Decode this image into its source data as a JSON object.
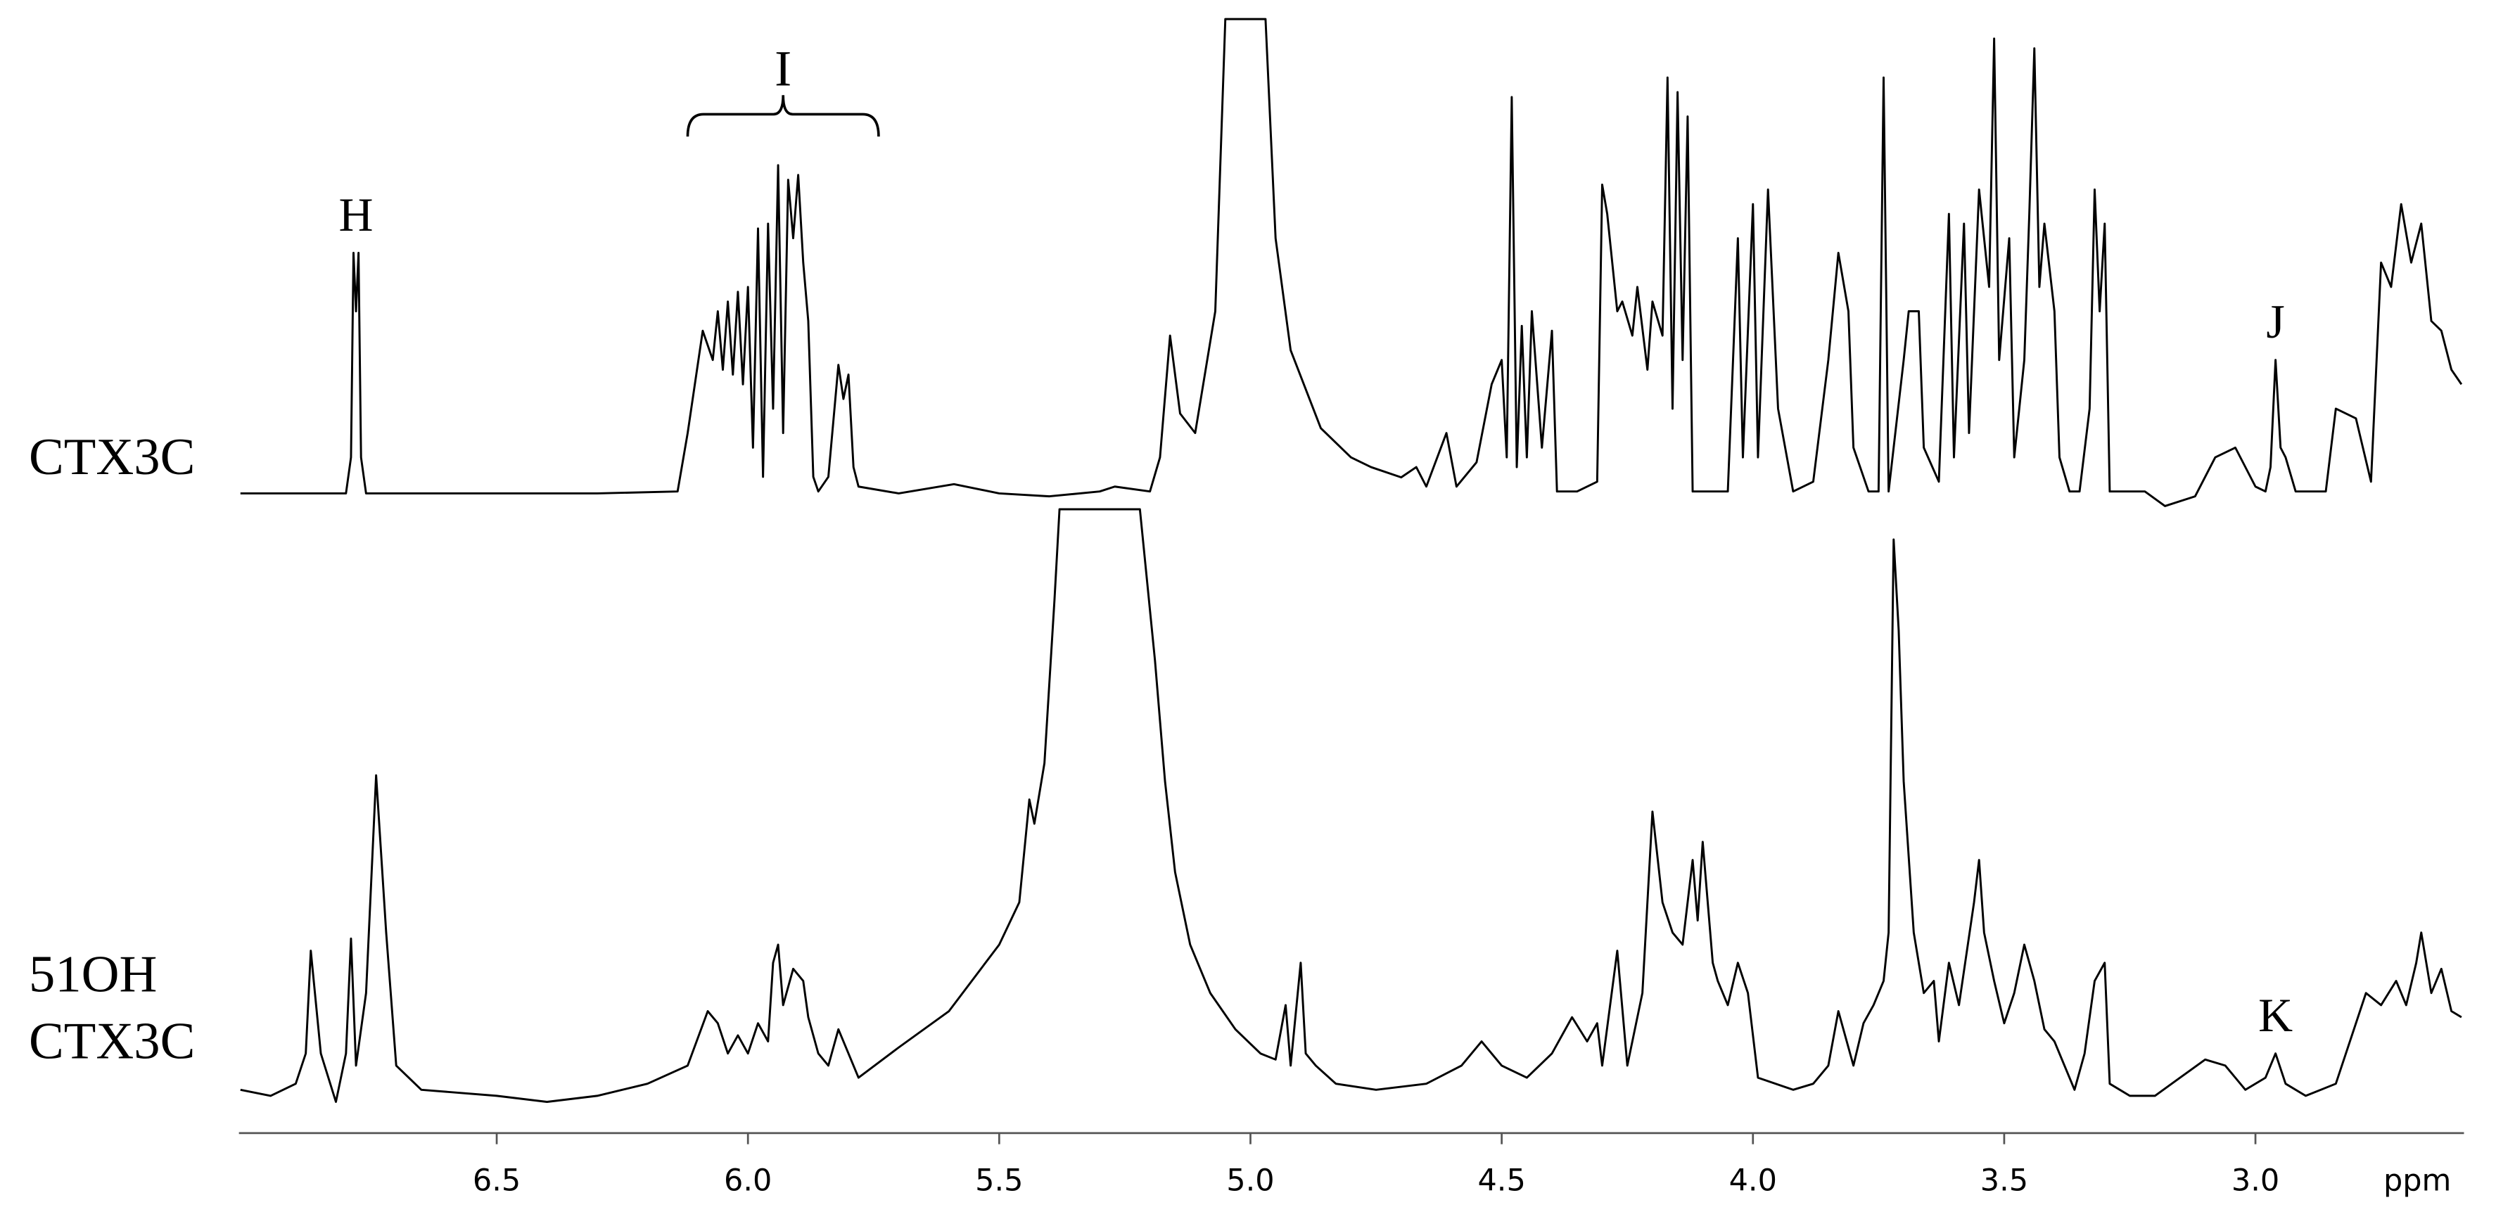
{
  "chart_data": [
    {
      "type": "line",
      "xlim": [
        7.013,
        2.585
      ],
      "ylim": [
        0,
        100
      ],
      "series": [
        {
          "label": [
            "CTX3C"
          ],
          "color": "#000000",
          "x": [
            7.01,
            6.9,
            6.8,
            6.79,
            6.785,
            6.78,
            6.775,
            6.77,
            6.76,
            6.5,
            6.3,
            6.14,
            6.12,
            6.09,
            6.07,
            6.06,
            6.05,
            6.04,
            6.03,
            6.02,
            6.01,
            6.0,
            5.99,
            5.98,
            5.97,
            5.96,
            5.95,
            5.94,
            5.93,
            5.92,
            5.91,
            5.9,
            5.89,
            5.88,
            5.87,
            5.86,
            5.84,
            5.82,
            5.81,
            5.8,
            5.79,
            5.78,
            5.7,
            5.59,
            5.5,
            5.4,
            5.3,
            5.27,
            5.2,
            5.18,
            5.16,
            5.14,
            5.11,
            5.07,
            5.05,
            4.97,
            4.95,
            4.92,
            4.86,
            4.8,
            4.76,
            4.7,
            4.67,
            4.65,
            4.61,
            4.59,
            4.55,
            4.52,
            4.5,
            4.49,
            4.48,
            4.47,
            4.46,
            4.45,
            4.44,
            4.42,
            4.4,
            4.39,
            4.35,
            4.31,
            4.3,
            4.29,
            4.27,
            4.26,
            4.24,
            4.23,
            4.21,
            4.2,
            4.18,
            4.17,
            4.16,
            4.15,
            4.14,
            4.13,
            4.12,
            4.05,
            4.03,
            4.02,
            4.0,
            3.99,
            3.97,
            3.95,
            3.92,
            3.88,
            3.85,
            3.83,
            3.81,
            3.8,
            3.77,
            3.75,
            3.74,
            3.73,
            3.7,
            3.69,
            3.67,
            3.66,
            3.63,
            3.61,
            3.6,
            3.58,
            3.57,
            3.55,
            3.53,
            3.52,
            3.51,
            3.49,
            3.48,
            3.46,
            3.45,
            3.44,
            3.43,
            3.42,
            3.4,
            3.39,
            3.37,
            3.35,
            3.33,
            3.32,
            3.31,
            3.3,
            3.29,
            3.22,
            3.18,
            3.12,
            3.08,
            3.04,
            3.0,
            2.98,
            2.97,
            2.96,
            2.95,
            2.94,
            2.92,
            2.86,
            2.84,
            2.8,
            2.77,
            2.75,
            2.73,
            2.71,
            2.69,
            2.67,
            2.65,
            2.63,
            2.61,
            2.59
          ],
          "values": [
            2.6,
            2.6,
            2.6,
            10,
            52,
            40,
            52,
            10,
            2.6,
            2.6,
            2.6,
            3,
            15,
            36,
            30,
            40,
            28,
            42,
            27,
            44,
            25,
            45,
            12,
            57,
            6,
            58,
            20,
            70,
            15,
            67,
            55,
            68,
            50,
            38,
            6,
            3,
            6,
            29,
            22,
            27,
            8,
            4,
            2.6,
            4.5,
            2.6,
            2,
            3,
            4,
            3,
            10,
            35,
            19,
            15,
            40,
            100,
            100,
            55,
            32,
            16,
            10,
            8,
            5.9,
            8,
            4,
            15,
            4,
            9,
            25,
            30,
            10,
            84,
            8,
            37,
            10,
            40,
            12,
            36,
            3,
            3,
            5,
            66,
            60,
            40,
            42,
            35,
            45,
            28,
            42,
            35,
            88,
            20,
            85,
            30,
            80,
            3,
            3,
            55,
            10,
            62,
            10,
            65,
            20,
            3,
            5,
            30,
            52,
            40,
            12,
            3,
            3,
            88,
            3,
            30,
            40,
            40,
            12,
            5,
            60,
            10,
            58,
            15,
            65,
            45,
            96,
            30,
            55,
            10,
            30,
            60,
            94,
            45,
            58,
            40,
            10,
            3,
            3,
            20,
            65,
            40,
            58,
            3,
            3,
            0,
            2,
            10,
            12,
            4,
            3,
            8,
            30,
            12,
            10,
            3,
            3,
            20,
            18,
            5,
            50,
            45,
            62,
            50,
            58,
            38,
            36,
            28,
            25
          ]
        }
      ],
      "annotations": [
        {
          "text": "H",
          "x": 6.78
        },
        {
          "text": "I",
          "x": 5.93,
          "bracket": [
            6.12,
            5.74
          ]
        },
        {
          "text": "J",
          "x": 2.96
        }
      ]
    },
    {
      "type": "line",
      "xlim": [
        7.013,
        2.585
      ],
      "ylim": [
        0,
        100
      ],
      "xticks": [
        6.5,
        {
          "value": 6,
          "label": "6.0"
        },
        5.5,
        {
          "value": 5,
          "label": "5.0"
        },
        4.5,
        {
          "value": 4,
          "label": "4.0"
        },
        3.5,
        {
          "value": 3,
          "label": "3.0"
        }
      ],
      "xlabel": "ppm",
      "series": [
        {
          "label": [
            "51OH",
            "CTX3C"
          ],
          "color": "#000000",
          "x": [
            7.01,
            6.95,
            6.9,
            6.88,
            6.87,
            6.85,
            6.82,
            6.8,
            6.79,
            6.78,
            6.76,
            6.74,
            6.72,
            6.7,
            6.65,
            6.5,
            6.4,
            6.3,
            6.2,
            6.12,
            6.08,
            6.06,
            6.04,
            6.02,
            6.0,
            5.98,
            5.96,
            5.95,
            5.94,
            5.93,
            5.91,
            5.89,
            5.88,
            5.86,
            5.84,
            5.82,
            5.8,
            5.78,
            5.7,
            5.6,
            5.5,
            5.46,
            5.44,
            5.43,
            5.41,
            5.39,
            5.38,
            5.22,
            5.19,
            5.17,
            5.15,
            5.12,
            5.08,
            5.03,
            4.98,
            4.95,
            4.93,
            4.92,
            4.9,
            4.89,
            4.87,
            4.83,
            4.75,
            4.65,
            4.58,
            4.54,
            4.5,
            4.45,
            4.4,
            4.36,
            4.33,
            4.31,
            4.3,
            4.27,
            4.25,
            4.22,
            4.2,
            4.18,
            4.16,
            4.14,
            4.12,
            4.11,
            4.1,
            4.08,
            4.07,
            4.05,
            4.03,
            4.01,
            3.99,
            3.92,
            3.88,
            3.85,
            3.83,
            3.8,
            3.78,
            3.76,
            3.74,
            3.73,
            3.72,
            3.71,
            3.7,
            3.68,
            3.66,
            3.64,
            3.63,
            3.61,
            3.59,
            3.56,
            3.55,
            3.54,
            3.52,
            3.5,
            3.48,
            3.46,
            3.44,
            3.42,
            3.4,
            3.38,
            3.36,
            3.34,
            3.32,
            3.3,
            3.29,
            3.25,
            3.2,
            3.15,
            3.1,
            3.06,
            3.02,
            2.98,
            2.96,
            2.94,
            2.9,
            2.84,
            2.8,
            2.78,
            2.75,
            2.72,
            2.7,
            2.68,
            2.67,
            2.65,
            2.63,
            2.61,
            2.59
          ],
          "values": [
            4,
            3,
            5,
            10,
            27,
            10,
            2,
            10,
            29,
            8,
            20,
            56,
            30,
            8,
            4,
            3,
            2,
            3,
            5,
            8,
            17,
            15,
            10,
            13,
            10,
            15,
            12,
            25,
            28,
            18,
            24,
            22,
            16,
            10,
            8,
            14,
            10,
            6,
            11,
            17,
            28,
            35,
            52,
            48,
            58,
            85,
            100,
            100,
            75,
            55,
            40,
            28,
            20,
            14,
            10,
            9,
            18,
            8,
            25,
            10,
            8,
            5,
            4,
            5,
            8,
            12,
            8,
            6,
            10,
            16,
            12,
            15,
            8,
            27,
            8,
            20,
            50,
            35,
            30,
            28,
            42,
            32,
            45,
            25,
            22,
            18,
            25,
            20,
            6,
            4,
            5,
            8,
            17,
            8,
            15,
            18,
            22,
            30,
            95,
            80,
            55,
            30,
            20,
            22,
            12,
            25,
            18,
            35,
            42,
            30,
            22,
            15,
            20,
            28,
            22,
            14,
            12,
            8,
            4,
            10,
            22,
            25,
            5,
            3,
            3,
            6,
            9,
            8,
            4,
            6,
            10,
            5,
            3,
            5,
            15,
            20,
            18,
            22,
            18,
            25,
            30,
            20,
            24,
            17,
            16
          ]
        }
      ],
      "annotations": [
        {
          "text": "K",
          "x": 2.96
        }
      ]
    }
  ]
}
